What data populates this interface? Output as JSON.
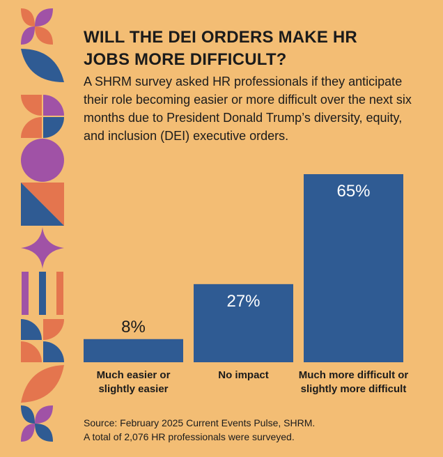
{
  "title": "WILL THE DEI ORDERS MAKE HR JOBS MORE DIFFICULT?",
  "subtitle": "A SHRM survey asked HR professionals if they anticipate their role becoming easier or more difficult over the next six months due to President Donald Trump’s diversity, equity, and inclusion (DEI) executive orders.",
  "source": {
    "line1": "Source: February 2025 Current Events Pulse, SHRM.",
    "line2": "A total of 2,076 HR professionals were surveyed."
  },
  "colors": {
    "background": "#F3BD74",
    "bar": "#2F5B93",
    "purple": "#A052A6",
    "orange": "#E4754E",
    "navy": "#2F5B93"
  },
  "chart_data": {
    "type": "bar",
    "categories": [
      [
        "Much easier or",
        "slightly easier"
      ],
      [
        "No impact"
      ],
      [
        "Much more difficult or",
        "slightly more difficult"
      ]
    ],
    "values": [
      8,
      27,
      65
    ],
    "value_labels": [
      "8%",
      "27%",
      "65%"
    ],
    "unit": "%",
    "ylim": [
      0,
      65
    ],
    "grid": false,
    "legend": "none"
  }
}
